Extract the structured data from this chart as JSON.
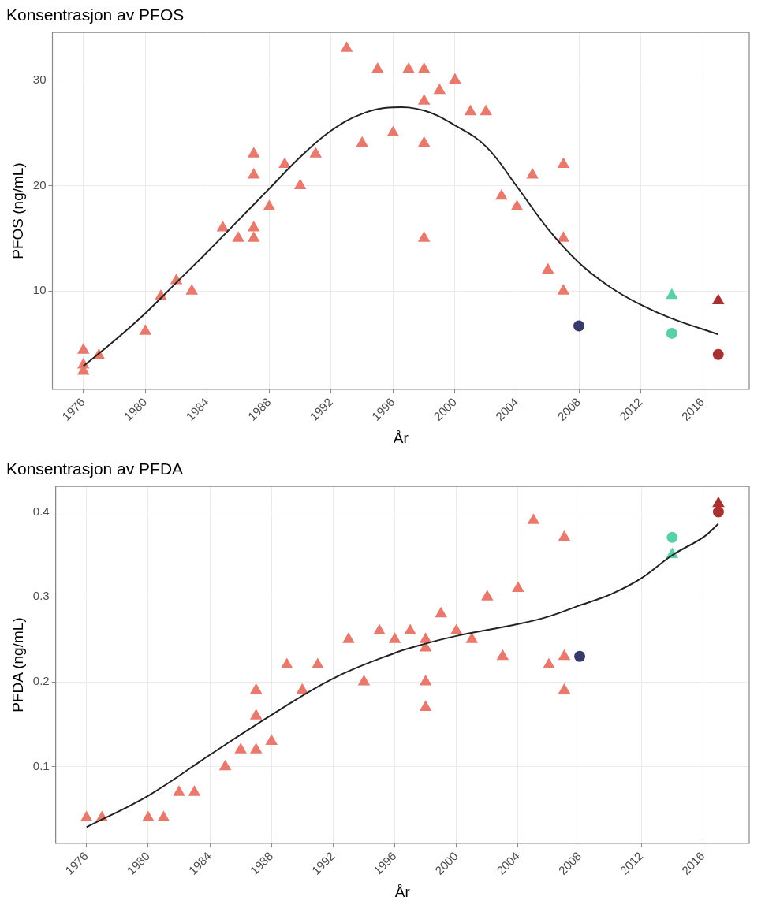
{
  "chart_data": [
    {
      "type": "scatter",
      "title": "Konsentrasjon av PFOS",
      "xlabel": "År",
      "ylabel": "PFOS (ng/mL)",
      "xlim": [
        1974,
        2019
      ],
      "xticks": [
        1976,
        1980,
        1984,
        1988,
        1992,
        1996,
        2000,
        2004,
        2008,
        2012,
        2016
      ],
      "ylim": [
        0.7,
        34.5
      ],
      "yticks": [
        10,
        20,
        30
      ],
      "grid": true,
      "legend": false,
      "series": [
        {
          "type": "scatter",
          "marker": "triangle",
          "color": "#e9786d",
          "x": [
            1976,
            1976,
            1976,
            1977,
            1980,
            1981,
            1982,
            1983,
            1985,
            1986,
            1987,
            1987,
            1987,
            1987,
            1988,
            1989,
            1990,
            1991,
            1993,
            1994,
            1995,
            1996,
            1997,
            1998,
            1998,
            1998,
            1998,
            1999,
            2000,
            2001,
            2002,
            2003,
            2004,
            2005,
            2006,
            2007,
            2007,
            2007
          ],
          "values": [
            4.4,
            3,
            2.4,
            3.9,
            6.2,
            9.5,
            11,
            10,
            16,
            15,
            23,
            21,
            16,
            15,
            18,
            22,
            20,
            23,
            33,
            24,
            31,
            25,
            31,
            31,
            28,
            24,
            15,
            29,
            30,
            27,
            27,
            19,
            18,
            21,
            12,
            22,
            15,
            10
          ]
        },
        {
          "type": "scatter",
          "marker": "triangle",
          "color": "#5ad0a8",
          "x": [
            2014
          ],
          "values": [
            9.6
          ]
        },
        {
          "type": "scatter",
          "marker": "triangle",
          "color": "#a8302e",
          "x": [
            2017
          ],
          "values": [
            9.1
          ]
        },
        {
          "type": "scatter",
          "marker": "circle",
          "color": "#373a6b",
          "x": [
            2008
          ],
          "values": [
            6.7
          ]
        },
        {
          "type": "scatter",
          "marker": "circle",
          "color": "#5ad0a8",
          "x": [
            2014
          ],
          "values": [
            6
          ]
        },
        {
          "type": "scatter",
          "marker": "circle",
          "color": "#a8302e",
          "x": [
            2017
          ],
          "values": [
            4
          ]
        },
        {
          "type": "line",
          "marker": "none",
          "line_style": "solid",
          "color": "#222222",
          "x": [
            1976,
            1978,
            1980,
            1982,
            1984,
            1986,
            1988,
            1990,
            1992,
            1994,
            1996,
            1998,
            2000,
            2002,
            2004,
            2006,
            2008,
            2010,
            2012,
            2014,
            2017
          ],
          "values": [
            2.9,
            5.3,
            7.9,
            10.8,
            13.7,
            16.7,
            19.7,
            22.7,
            25.2,
            26.8,
            27.4,
            27.1,
            25.7,
            23.7,
            19.9,
            15.9,
            12.7,
            10.4,
            8.7,
            7.4,
            5.9
          ]
        }
      ]
    },
    {
      "type": "scatter",
      "title": "Konsentrasjon av PFDA",
      "xlabel": "År",
      "ylabel": "PFDA (ng/mL)",
      "xlim": [
        1974,
        2019
      ],
      "xticks": [
        1976,
        1980,
        1984,
        1988,
        1992,
        1996,
        2000,
        2004,
        2008,
        2012,
        2016
      ],
      "ylim": [
        0.01,
        0.43
      ],
      "yticks": [
        0.1,
        0.2,
        0.3,
        0.4
      ],
      "grid": true,
      "legend": false,
      "series": [
        {
          "type": "scatter",
          "marker": "triangle",
          "color": "#e9786d",
          "x": [
            1976,
            1977,
            1980,
            1981,
            1982,
            1983,
            1985,
            1986,
            1987,
            1987,
            1987,
            1988,
            1989,
            1990,
            1991,
            1993,
            1994,
            1995,
            1996,
            1997,
            1998,
            1998,
            1998,
            1998,
            1999,
            2000,
            2001,
            2002,
            2003,
            2004,
            2005,
            2006,
            2007,
            2007,
            2007
          ],
          "values": [
            0.04,
            0.04,
            0.04,
            0.04,
            0.07,
            0.07,
            0.1,
            0.12,
            0.12,
            0.16,
            0.19,
            0.13,
            0.22,
            0.19,
            0.22,
            0.25,
            0.2,
            0.26,
            0.25,
            0.26,
            0.25,
            0.24,
            0.2,
            0.17,
            0.28,
            0.26,
            0.25,
            0.3,
            0.23,
            0.31,
            0.39,
            0.22,
            0.37,
            0.23,
            0.19
          ]
        },
        {
          "type": "scatter",
          "marker": "triangle",
          "color": "#5ad0a8",
          "x": [
            2014
          ],
          "values": [
            0.35
          ]
        },
        {
          "type": "scatter",
          "marker": "triangle",
          "color": "#a8302e",
          "x": [
            2017
          ],
          "values": [
            0.41
          ]
        },
        {
          "type": "scatter",
          "marker": "circle",
          "color": "#373a6b",
          "x": [
            2008
          ],
          "values": [
            0.23
          ]
        },
        {
          "type": "scatter",
          "marker": "circle",
          "color": "#5ad0a8",
          "x": [
            2014
          ],
          "values": [
            0.37
          ]
        },
        {
          "type": "scatter",
          "marker": "circle",
          "color": "#a8302e",
          "x": [
            2017
          ],
          "values": [
            0.4
          ]
        },
        {
          "type": "line",
          "marker": "none",
          "line_style": "solid",
          "color": "#222222",
          "x": [
            1976,
            1980,
            1984,
            1988,
            1992,
            1996,
            1998,
            2000,
            2004,
            2006,
            2008,
            2010,
            2012,
            2014,
            2016,
            2017
          ],
          "values": [
            0.029,
            0.066,
            0.114,
            0.161,
            0.204,
            0.234,
            0.245,
            0.254,
            0.268,
            0.277,
            0.29,
            0.303,
            0.322,
            0.349,
            0.37,
            0.386
          ]
        }
      ]
    }
  ]
}
